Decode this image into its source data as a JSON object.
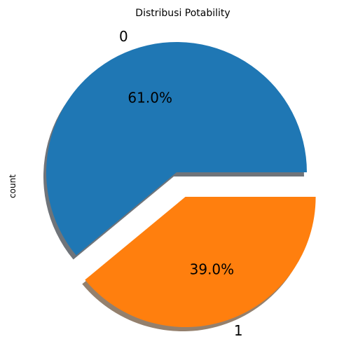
{
  "chart_data": {
    "type": "pie",
    "title": "Distribusi Potability",
    "ylabel": "count",
    "categories": [
      "0",
      "1"
    ],
    "values": [
      61.0,
      39.0
    ],
    "percent_labels": [
      "61.0%",
      "39.0%"
    ],
    "colors": [
      "#1f77b4",
      "#ff7f0e"
    ],
    "explode": [
      0,
      0.2
    ],
    "shadow": true,
    "start_angle_deg": 0
  }
}
